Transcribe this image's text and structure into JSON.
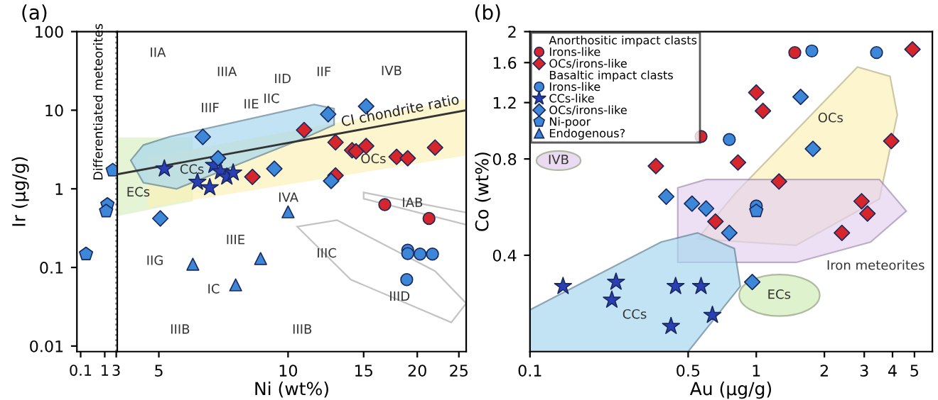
{
  "chart_data": [
    {
      "type": "scatter",
      "title": "(a)",
      "ylabel": "Ir (µg/g)",
      "log": "xy",
      "xlim": [
        0.07,
        3.3
      ],
      "ylim": [
        0.0085,
        100
      ],
      "xticks": [
        0.1,
        1,
        3
      ],
      "yticks": [
        0.01,
        0.1,
        1,
        10,
        100
      ],
      "grid": false,
      "series": [
        {
          "color": "#3d87d8",
          "x": [
            2.15,
            1.29,
            1.14,
            0.167
          ],
          "values": [
            1.72,
            0.63,
            0.52,
            0.148
          ]
        }
      ],
      "ref_lines": [
        {
          "axis": "x",
          "value": 3,
          "label": "Differentiated meteorites",
          "line_style": "dotted",
          "color": "#888888"
        }
      ]
    },
    {
      "type": "scatter",
      "xlabel": "Ni (wt%)",
      "log": "xy",
      "tick_labels": "x",
      "xlim": [
        4,
        26
      ],
      "ylim": [
        0.0085,
        100
      ],
      "xticks": [
        5,
        10,
        15,
        20,
        25
      ],
      "yticks": [
        0.01,
        0.1,
        1,
        10,
        100
      ],
      "grid": false,
      "series": [
        {
          "color": "#d7262b",
          "marker": "circle",
          "x": [
            16.8,
            21.3
          ],
          "values": [
            0.63,
            0.42
          ]
        },
        {
          "color": "#d7262b",
          "marker": "diamond",
          "x": [
            10.9,
            12.9,
            14.1,
            14.4,
            15.2,
            17.9,
            19.0,
            22.0,
            8.26,
            12.9
          ],
          "values": [
            5.6,
            3.9,
            3.1,
            3.0,
            3.5,
            2.55,
            2.45,
            3.35,
            1.42,
            1.48
          ]
        },
        {
          "color": "#3d87d8",
          "marker": "circle",
          "x": [
            19.0,
            19.0,
            20.3,
            21.7,
            18.9
          ],
          "values": [
            0.166,
            0.15,
            0.148,
            0.148,
            0.07
          ]
        },
        {
          "color": "#2a3fb5",
          "marker": "star",
          "x": [
            5.15,
            6.15,
            6.57,
            6.72,
            6.96,
            7.2,
            7.45
          ],
          "values": [
            1.8,
            1.22,
            1.04,
            2.0,
            1.66,
            1.42,
            1.6
          ]
        },
        {
          "color": "#3d87d8",
          "marker": "diamond",
          "x": [
            6.33,
            6.87,
            9.29,
            12.4,
            15.2,
            12.6,
            5.04
          ],
          "values": [
            4.58,
            2.45,
            1.8,
            8.9,
            11.2,
            1.26,
            0.42
          ]
        },
        {
          "color": "#3d87d8",
          "marker": "triangle",
          "x": [
            10,
            6.0,
            7.55,
            8.63
          ],
          "values": [
            0.51,
            0.11,
            0.06,
            0.13
          ]
        },
        {
          "type": "line",
          "name": "CI chondrite ratio",
          "color": "#333333",
          "marker": "none",
          "line_style": "solid",
          "x": [
            4,
            26
          ],
          "values": [
            1.53,
            10
          ]
        }
      ],
      "annotations": [
        "IIA",
        "IIIA",
        "IID",
        "IIF",
        "IVB",
        "IIIF",
        "IIE",
        "IIC",
        "CCs",
        "ECs",
        "OCs",
        "IVA",
        "IAB",
        "IIIE",
        "IIIC",
        "IIID",
        "IIG",
        "IC",
        "IIIB",
        "IIIB"
      ]
    },
    {
      "type": "scatter",
      "title": "(b)",
      "xlabel": "Au (µg/g)",
      "ylabel": "Co (wt%)",
      "log": "xy",
      "xlim": [
        0.1,
        6
      ],
      "ylim": [
        0.2,
        2
      ],
      "xticks": [
        0.1,
        0.5,
        1,
        2,
        3,
        4,
        5
      ],
      "yticks": [
        0.4,
        0.8,
        1.2,
        1.6,
        2
      ],
      "grid": false,
      "legend": "top left",
      "legend_title": "Anorthositic impact clasts",
      "series": [
        {
          "name": "Irons-like",
          "color": "#d7262b",
          "marker": "circle",
          "x": [
            1.48,
            0.57
          ],
          "values": [
            1.72,
            0.94
          ]
        },
        {
          "name": "OCs/irons-like",
          "color": "#d7262b",
          "marker": "diamond",
          "x": [
            4.9,
            1.0,
            1.07,
            0.36,
            0.83,
            1.26,
            3.95,
            2.92,
            3.1,
            0.66,
            2.39
          ],
          "values": [
            1.76,
            1.29,
            1.13,
            0.76,
            0.78,
            0.68,
            0.91,
            0.59,
            0.54,
            0.51,
            0.47
          ]
        },
        {
          "name": "Irons-like",
          "color": "#3d87d8",
          "marker": "circle",
          "x": [
            1.76,
            3.4,
            0.76,
            1.0
          ],
          "values": [
            1.74,
            1.72,
            0.92,
            0.57
          ]
        },
        {
          "name": "CCs-like",
          "color": "#2a3fb5",
          "marker": "star",
          "x": [
            0.14,
            0.24,
            0.23,
            0.44,
            0.57,
            0.64,
            0.42
          ],
          "values": [
            0.32,
            0.33,
            0.29,
            0.32,
            0.32,
            0.26,
            0.24
          ]
        },
        {
          "name": "OCs/irons-like",
          "color": "#3d87d8",
          "marker": "diamond",
          "x": [
            1.57,
            1.78,
            0.4,
            0.52,
            0.6,
            0.76,
            0.96
          ],
          "values": [
            1.25,
            0.86,
            0.61,
            0.58,
            0.56,
            0.47,
            0.33
          ]
        },
        {
          "name": "Ni-poor",
          "color": "#3d87d8",
          "x": [
            1.0
          ],
          "values": [
            0.55
          ]
        },
        {
          "name": "Endogenous?",
          "color": "#3d87d8",
          "marker": "triangle"
        }
      ],
      "annotations": [
        "Basaltic impact clasts",
        "OCs",
        "Iron meteorites",
        "CCs",
        "ECs",
        "IVB"
      ]
    }
  ]
}
